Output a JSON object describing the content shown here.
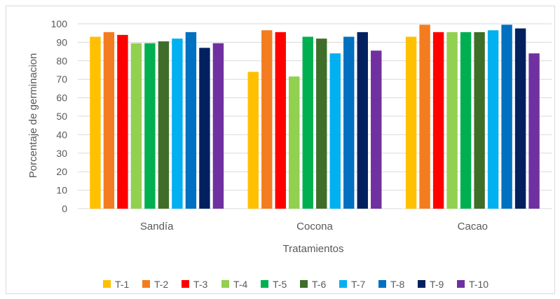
{
  "chart_data": {
    "type": "bar",
    "title": "",
    "xlabel": "Tratamientos",
    "ylabel": "Porcentaje de germinacion",
    "ylim": [
      0,
      100
    ],
    "yticks": [
      0,
      10,
      20,
      30,
      40,
      50,
      60,
      70,
      80,
      90,
      100
    ],
    "grid": true,
    "legend_position": "bottom",
    "categories": [
      "Sandía",
      "Cocona",
      "Cacao"
    ],
    "series": [
      {
        "name": "T-1",
        "color": "#ffc000",
        "values": [
          93,
          74,
          93
        ]
      },
      {
        "name": "T-2",
        "color": "#f47c20",
        "values": [
          95.5,
          96.5,
          99.5
        ]
      },
      {
        "name": "T-3",
        "color": "#ff0000",
        "values": [
          94,
          95.5,
          95.5
        ]
      },
      {
        "name": "T-4",
        "color": "#92d050",
        "values": [
          89.5,
          71.5,
          95.5
        ]
      },
      {
        "name": "T-5",
        "color": "#00b050",
        "values": [
          89.5,
          93,
          95.5
        ]
      },
      {
        "name": "T-6",
        "color": "#3f6e2a",
        "values": [
          90.5,
          92,
          95.5
        ]
      },
      {
        "name": "T-7",
        "color": "#00b0f0",
        "values": [
          92,
          84,
          96.5
        ]
      },
      {
        "name": "T-8",
        "color": "#0070c0",
        "values": [
          95.5,
          93,
          99.5
        ]
      },
      {
        "name": "T-9",
        "color": "#002060",
        "values": [
          87,
          95.5,
          97.5
        ]
      },
      {
        "name": "T-10",
        "color": "#7030a0",
        "values": [
          89.5,
          85.5,
          84
        ]
      }
    ]
  }
}
